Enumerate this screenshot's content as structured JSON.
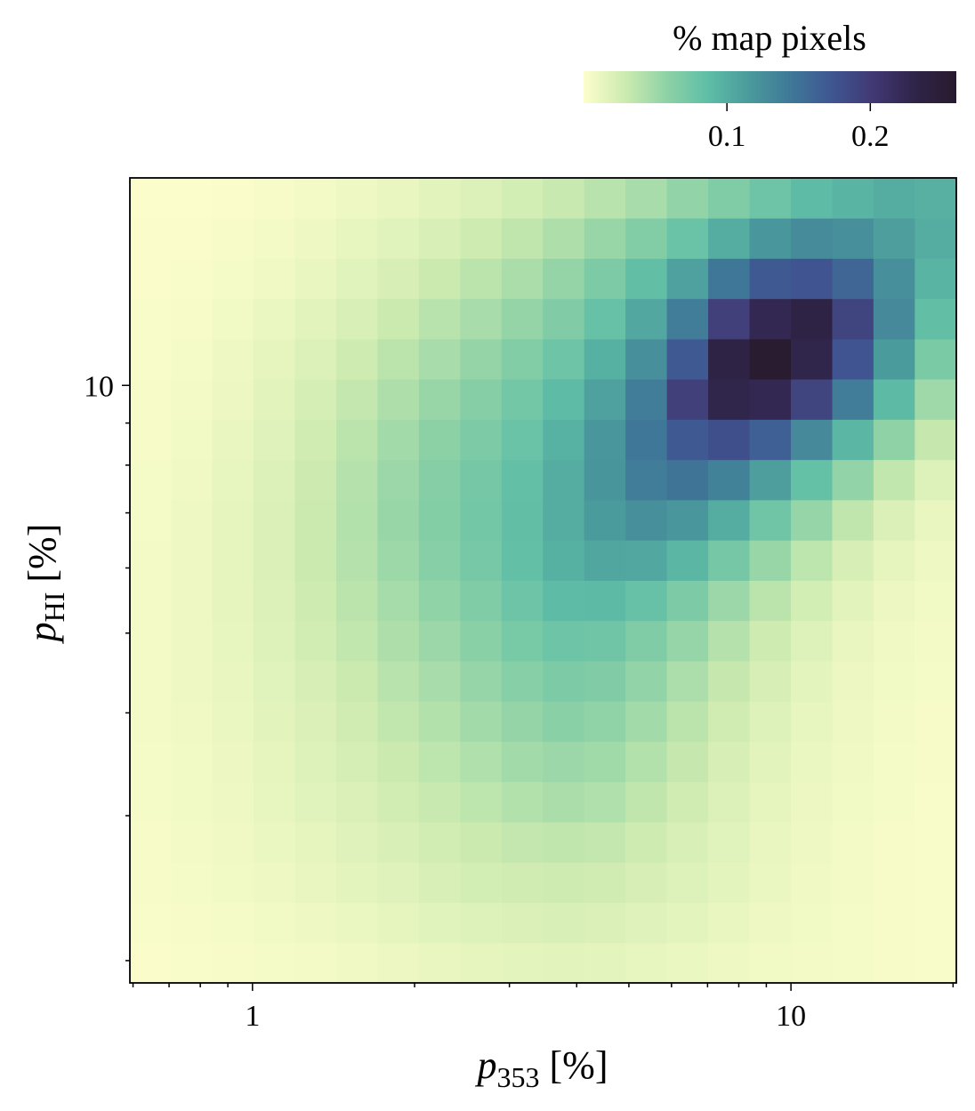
{
  "chart_data": {
    "type": "heatmap",
    "colorbar_label": "% map pixels",
    "xlabel": {
      "base": "p",
      "sub": "353",
      "rest": " [%]"
    },
    "ylabel": {
      "base": "p",
      "sub": "HI",
      "rest": " [%]"
    },
    "xscale": "log",
    "yscale": "log",
    "xlim": [
      0.592,
      20.28
    ],
    "ylim": [
      1.879,
      17.87
    ],
    "xticks": [
      1,
      10
    ],
    "yticks": [
      10
    ],
    "xminorticks": [
      0.6,
      0.7,
      0.8,
      0.9,
      2,
      3,
      4,
      5,
      6,
      7,
      8,
      9,
      20
    ],
    "yminorticks": [
      2,
      3,
      4,
      5,
      6,
      7,
      8,
      9
    ],
    "clim": [
      0,
      0.26
    ],
    "cticks": [
      0.1,
      0.2
    ],
    "colormap": [
      "#fdfecc",
      "#cdebb0",
      "#8ed2a6",
      "#5fbea6",
      "#4a9a9c",
      "#3f7898",
      "#3f5692",
      "#413873",
      "#2f2449",
      "#281a2c"
    ],
    "xbins": [
      0.592,
      0.706,
      0.842,
      1.004,
      1.199,
      1.431,
      1.707,
      2.037,
      2.431,
      2.901,
      3.461,
      4.13,
      4.929,
      5.882,
      7.019,
      8.376,
      9.995,
      11.93,
      14.23,
      16.98,
      20.28
    ],
    "ybins": [
      1.879,
      2.103,
      2.354,
      2.634,
      2.948,
      3.3,
      3.694,
      4.134,
      4.627,
      5.179,
      5.796,
      6.487,
      7.261,
      8.126,
      9.095,
      10.18,
      11.39,
      12.75,
      14.27,
      15.97,
      17.87
    ],
    "z": [
      [
        0.002,
        0.003,
        0.004,
        0.005,
        0.006,
        0.008,
        0.01,
        0.012,
        0.014,
        0.015,
        0.016,
        0.015,
        0.013,
        0.011,
        0.009,
        0.007,
        0.006,
        0.005,
        0.004,
        0.003
      ],
      [
        0.003,
        0.004,
        0.005,
        0.007,
        0.009,
        0.011,
        0.014,
        0.017,
        0.019,
        0.021,
        0.022,
        0.021,
        0.018,
        0.015,
        0.012,
        0.009,
        0.007,
        0.005,
        0.004,
        0.003
      ],
      [
        0.004,
        0.005,
        0.007,
        0.009,
        0.012,
        0.015,
        0.018,
        0.022,
        0.025,
        0.027,
        0.028,
        0.027,
        0.023,
        0.019,
        0.015,
        0.011,
        0.008,
        0.006,
        0.004,
        0.003
      ],
      [
        0.004,
        0.006,
        0.008,
        0.011,
        0.014,
        0.018,
        0.022,
        0.026,
        0.03,
        0.033,
        0.035,
        0.033,
        0.028,
        0.022,
        0.017,
        0.012,
        0.009,
        0.006,
        0.004,
        0.003
      ],
      [
        0.005,
        0.007,
        0.009,
        0.013,
        0.017,
        0.021,
        0.026,
        0.031,
        0.036,
        0.041,
        0.045,
        0.042,
        0.035,
        0.027,
        0.02,
        0.014,
        0.01,
        0.007,
        0.005,
        0.003
      ],
      [
        0.005,
        0.007,
        0.01,
        0.014,
        0.019,
        0.024,
        0.03,
        0.036,
        0.042,
        0.048,
        0.052,
        0.049,
        0.041,
        0.032,
        0.023,
        0.016,
        0.011,
        0.008,
        0.005,
        0.004
      ],
      [
        0.006,
        0.008,
        0.011,
        0.016,
        0.021,
        0.027,
        0.034,
        0.041,
        0.048,
        0.055,
        0.06,
        0.057,
        0.048,
        0.037,
        0.027,
        0.019,
        0.013,
        0.009,
        0.006,
        0.004
      ],
      [
        0.006,
        0.009,
        0.012,
        0.017,
        0.023,
        0.03,
        0.038,
        0.046,
        0.054,
        0.062,
        0.068,
        0.066,
        0.056,
        0.044,
        0.032,
        0.023,
        0.015,
        0.01,
        0.007,
        0.005
      ],
      [
        0.006,
        0.009,
        0.013,
        0.019,
        0.026,
        0.034,
        0.043,
        0.052,
        0.061,
        0.071,
        0.078,
        0.077,
        0.067,
        0.054,
        0.04,
        0.028,
        0.019,
        0.012,
        0.008,
        0.006
      ],
      [
        0.006,
        0.009,
        0.014,
        0.02,
        0.028,
        0.037,
        0.047,
        0.057,
        0.067,
        0.078,
        0.088,
        0.09,
        0.082,
        0.068,
        0.052,
        0.037,
        0.025,
        0.016,
        0.01,
        0.007
      ],
      [
        0.006,
        0.009,
        0.014,
        0.021,
        0.03,
        0.04,
        0.051,
        0.062,
        0.072,
        0.084,
        0.097,
        0.106,
        0.104,
        0.092,
        0.073,
        0.053,
        0.036,
        0.023,
        0.014,
        0.009
      ],
      [
        0.005,
        0.009,
        0.014,
        0.021,
        0.03,
        0.041,
        0.053,
        0.064,
        0.074,
        0.085,
        0.1,
        0.115,
        0.124,
        0.118,
        0.1,
        0.077,
        0.054,
        0.035,
        0.021,
        0.012
      ],
      [
        0.005,
        0.008,
        0.013,
        0.02,
        0.029,
        0.04,
        0.052,
        0.063,
        0.073,
        0.084,
        0.1,
        0.12,
        0.14,
        0.148,
        0.136,
        0.112,
        0.083,
        0.056,
        0.034,
        0.019
      ],
      [
        0.004,
        0.007,
        0.012,
        0.018,
        0.027,
        0.037,
        0.048,
        0.059,
        0.069,
        0.08,
        0.096,
        0.118,
        0.145,
        0.17,
        0.18,
        0.165,
        0.13,
        0.092,
        0.058,
        0.032
      ],
      [
        0.004,
        0.006,
        0.01,
        0.016,
        0.024,
        0.033,
        0.043,
        0.053,
        0.063,
        0.074,
        0.088,
        0.11,
        0.14,
        0.195,
        0.23,
        0.225,
        0.19,
        0.14,
        0.09,
        0.05
      ],
      [
        0.003,
        0.005,
        0.009,
        0.014,
        0.02,
        0.028,
        0.037,
        0.046,
        0.055,
        0.065,
        0.078,
        0.097,
        0.125,
        0.17,
        0.235,
        0.255,
        0.23,
        0.175,
        0.115,
        0.07
      ],
      [
        0.003,
        0.004,
        0.007,
        0.011,
        0.016,
        0.022,
        0.03,
        0.038,
        0.046,
        0.055,
        0.066,
        0.082,
        0.105,
        0.14,
        0.195,
        0.225,
        0.235,
        0.19,
        0.13,
        0.085
      ],
      [
        0.002,
        0.003,
        0.005,
        0.008,
        0.012,
        0.017,
        0.023,
        0.03,
        0.037,
        0.045,
        0.055,
        0.068,
        0.085,
        0.11,
        0.145,
        0.17,
        0.175,
        0.16,
        0.125,
        0.095
      ],
      [
        0.002,
        0.002,
        0.004,
        0.006,
        0.009,
        0.013,
        0.017,
        0.022,
        0.028,
        0.035,
        0.043,
        0.053,
        0.065,
        0.08,
        0.1,
        0.118,
        0.128,
        0.125,
        0.112,
        0.1
      ],
      [
        0.001,
        0.001,
        0.002,
        0.004,
        0.006,
        0.009,
        0.012,
        0.016,
        0.02,
        0.025,
        0.031,
        0.038,
        0.046,
        0.056,
        0.067,
        0.078,
        0.088,
        0.095,
        0.1,
        0.098
      ]
    ]
  }
}
